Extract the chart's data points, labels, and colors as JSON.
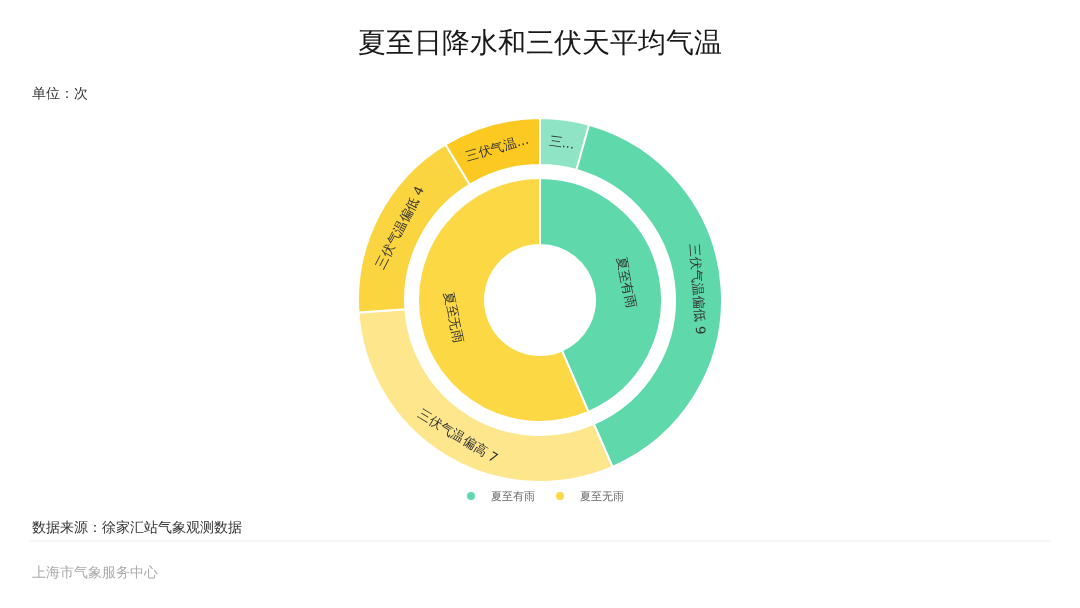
{
  "chart_data": [
    {
      "type": "donut",
      "title": "夏至日降水和三伏天平均气温",
      "annotations": [
        "单位：次",
        "数据来源：徐家汇站气象观测数据",
        "上海市气象服务中心"
      ],
      "legend": "bottom",
      "categories": [
        "夏至有雨",
        "夏至无雨"
      ],
      "values": [
        43.5,
        56.5
      ],
      "colors": [
        "#5fd8ab",
        "#fcd845"
      ]
    },
    {
      "type": "donut",
      "categories": [
        "三...",
        "三伏气温偏低",
        "三伏气温偏高",
        "三伏气温偏低",
        "三伏气温..."
      ],
      "values": [
        1,
        9,
        7,
        4,
        2
      ],
      "value_labels": [
        null,
        "9",
        "7",
        "4",
        null
      ],
      "colors": [
        "#8ee4c4",
        "#5fd8ab",
        "#fde68c",
        "#fbd53f",
        "#fcc922"
      ]
    }
  ]
}
